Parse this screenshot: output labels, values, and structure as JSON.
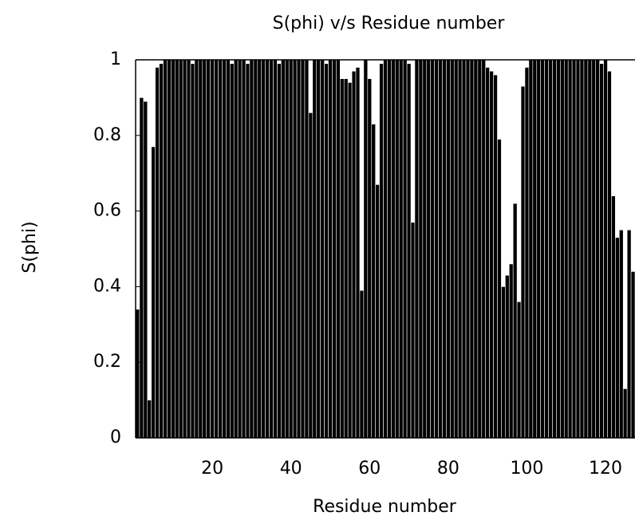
{
  "chart_data": {
    "type": "bar",
    "title": "S(phi) v/s Residue number",
    "xlabel": "Residue number",
    "ylabel": "S(phi)",
    "x": [
      1,
      2,
      3,
      4,
      5,
      6,
      7,
      8,
      9,
      10,
      11,
      12,
      13,
      14,
      15,
      16,
      17,
      18,
      19,
      20,
      21,
      22,
      23,
      24,
      25,
      26,
      27,
      28,
      29,
      30,
      31,
      32,
      33,
      34,
      35,
      36,
      37,
      38,
      39,
      40,
      41,
      42,
      43,
      44,
      45,
      46,
      47,
      48,
      49,
      50,
      51,
      52,
      53,
      54,
      55,
      56,
      57,
      58,
      59,
      60,
      61,
      62,
      63,
      64,
      65,
      66,
      67,
      68,
      69,
      70,
      71,
      72,
      73,
      74,
      75,
      76,
      77,
      78,
      79,
      80,
      81,
      82,
      83,
      84,
      85,
      86,
      87,
      88,
      89,
      90,
      91,
      92,
      93,
      94,
      95,
      96,
      97,
      98,
      99,
      100,
      101,
      102,
      103,
      104,
      105,
      106,
      107,
      108,
      109,
      110,
      111,
      112,
      113,
      114,
      115,
      116,
      117,
      118,
      119,
      120,
      121,
      122,
      123,
      124,
      125,
      126,
      127
    ],
    "values": [
      0.34,
      0.9,
      0.89,
      0.1,
      0.77,
      0.98,
      0.99,
      1,
      1,
      1,
      1,
      1,
      1,
      1,
      0.99,
      1,
      1,
      1,
      1,
      1,
      1,
      1,
      1,
      1,
      0.99,
      1,
      1,
      1,
      0.99,
      1,
      1,
      1,
      1,
      1,
      1,
      1,
      0.99,
      1,
      1,
      1,
      1,
      1,
      1,
      1,
      0.86,
      1,
      1,
      1,
      0.99,
      1,
      1,
      1,
      0.95,
      0.95,
      0.94,
      0.97,
      0.98,
      0.39,
      1,
      0.95,
      0.83,
      0.67,
      0.99,
      1,
      1,
      1,
      1,
      1,
      1,
      0.99,
      0.57,
      1,
      1,
      1,
      1,
      1,
      1,
      1,
      1,
      1,
      1,
      1,
      1,
      1,
      1,
      1,
      1,
      1,
      1,
      0.98,
      0.97,
      0.96,
      0.79,
      0.4,
      0.43,
      0.46,
      0.62,
      0.36,
      0.93,
      0.98,
      1,
      1,
      1,
      1,
      1,
      1,
      1,
      1,
      1,
      1,
      1,
      1,
      1,
      1,
      1,
      1,
      1,
      1,
      0.99,
      1,
      0.97,
      0.64,
      0.53,
      0.55,
      0.13,
      0.55,
      0.44
    ],
    "color": "#000000",
    "xlim": [
      0.5,
      127.5
    ],
    "xticks": [
      20,
      40,
      60,
      80,
      100,
      120
    ],
    "ylim": [
      0,
      1
    ],
    "yticks": [
      0,
      0.2,
      0.4,
      0.6,
      0.8,
      1
    ]
  }
}
